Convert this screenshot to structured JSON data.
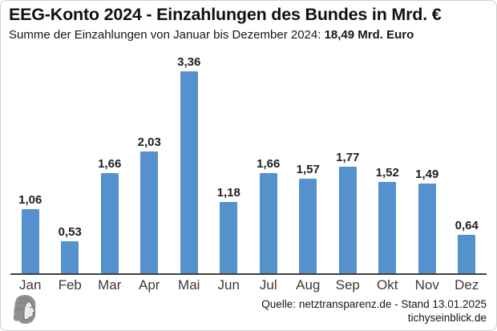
{
  "header": {
    "title": "EEG-Konto 2024 - Einzahlungen des Bundes in Mrd. €",
    "subtitle_prefix": "Summe der Einzahlungen von Januar bis Dezember 2024: ",
    "subtitle_bold": "18,49 Mrd. Euro"
  },
  "chart_data": {
    "type": "bar",
    "title": "EEG-Konto 2024 - Einzahlungen des Bundes in Mrd. €",
    "categories": [
      "Jan",
      "Feb",
      "Mar",
      "Apr",
      "Mai",
      "Jun",
      "Jul",
      "Aug",
      "Sep",
      "Okt",
      "Nov",
      "Dez"
    ],
    "values": [
      1.06,
      0.53,
      1.66,
      2.03,
      3.36,
      1.18,
      1.66,
      1.57,
      1.77,
      1.52,
      1.49,
      0.64
    ],
    "value_labels": [
      "1,06",
      "0,53",
      "1,66",
      "2,03",
      "3,36",
      "1,18",
      "1,66",
      "1,57",
      "1,77",
      "1,52",
      "1,49",
      "0,64"
    ],
    "total_label": "18,49 Mrd. Euro",
    "xlabel": "",
    "ylabel": "",
    "ylim": [
      0,
      3.6
    ],
    "bar_color": "#5592cd",
    "grid": false,
    "legend": false,
    "value_label_format": "german-decimal"
  },
  "footer": {
    "source": "Quelle: netztransparenz.de - Stand 13.01.2025",
    "site": "tichyseinblick.de",
    "logo_icon": "classical-head-logo"
  }
}
